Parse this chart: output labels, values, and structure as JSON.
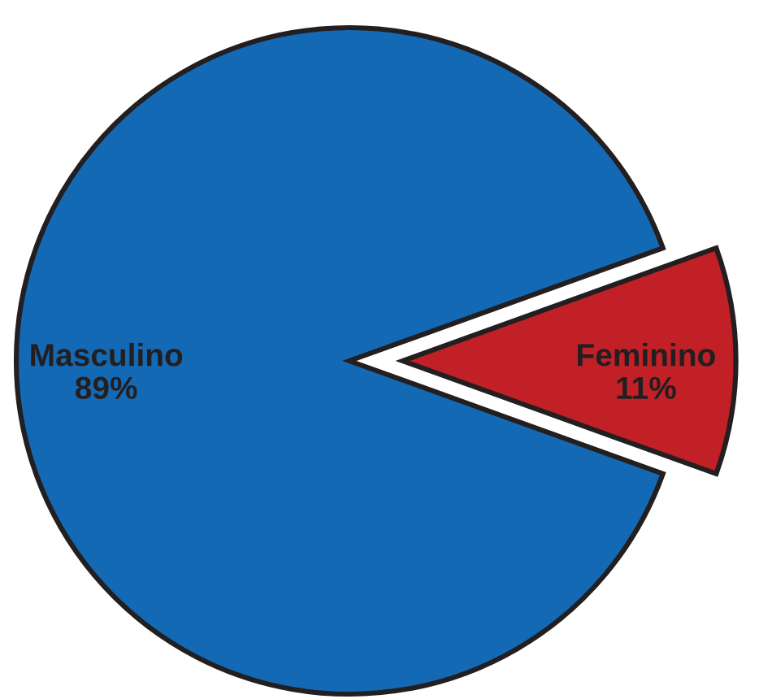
{
  "chart_data": {
    "type": "pie",
    "categories": [
      "Masculino",
      "Feminino"
    ],
    "values": [
      89,
      11
    ],
    "colors": [
      "#1469b5",
      "#c12026"
    ],
    "value_labels": [
      "89%",
      "11%"
    ]
  }
}
